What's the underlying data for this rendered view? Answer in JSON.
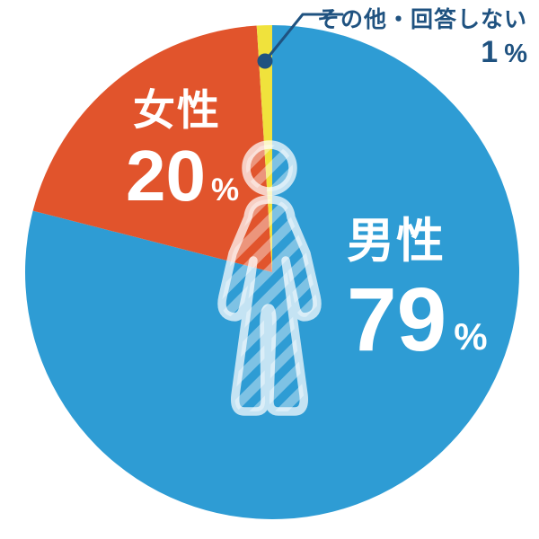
{
  "chart_data": {
    "type": "pie",
    "title": "",
    "unit": "%",
    "direction": "clockwise",
    "start_angle_deg": 0,
    "legend_position": "none",
    "center_icon": "person-pictogram",
    "slices": [
      {
        "key": "male",
        "label": "男性",
        "value": 79,
        "color": "#2E9CD4",
        "label_color": "#FFFFFF"
      },
      {
        "key": "female",
        "label": "女性",
        "value": 20,
        "color": "#E1542C",
        "label_color": "#FFFFFF"
      },
      {
        "key": "other",
        "label": "その他・回答しない",
        "value": 1,
        "color": "#F0E23C",
        "label_color": "#1F5280"
      }
    ],
    "annotations": [
      {
        "target": "other",
        "text": "その他・回答しない",
        "value_text": "1",
        "unit": "%",
        "style": "dot-leader-callout"
      }
    ],
    "colors": {
      "background": "#FFFFFF",
      "callout_line": "#1F5280",
      "icon_overlay": "rgba(255,255,255,0.72)"
    }
  }
}
